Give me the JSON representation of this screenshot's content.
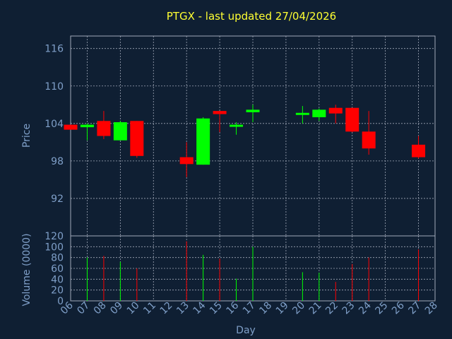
{
  "chart_data": {
    "type": "candlestick",
    "title": "PTGX - last updated 27/04/2026",
    "price_axis": {
      "label": "Price",
      "ylim": [
        86,
        118
      ],
      "ticks": [
        92,
        98,
        104,
        110,
        116
      ]
    },
    "volume_axis": {
      "label": "Volume (0000)",
      "ylim": [
        0,
        120
      ],
      "ticks": [
        0,
        20,
        40,
        60,
        80,
        100,
        120
      ]
    },
    "xlabel": "Day",
    "x_ticks": [
      "06",
      "07",
      "08",
      "09",
      "10",
      "11",
      "12",
      "13",
      "14",
      "15",
      "16",
      "17",
      "18",
      "19",
      "20",
      "21",
      "22",
      "23",
      "24",
      "25",
      "26",
      "27",
      "28"
    ],
    "grid": true,
    "colors": {
      "up": "#00ff00",
      "down": "#ff0000",
      "title": "#ffff33",
      "axis_text": "#7f9fc8",
      "background": "#0f1f33"
    },
    "candles": [
      {
        "day": "06",
        "open": 103.8,
        "high": 103.8,
        "low": 103.0,
        "close": 103.0,
        "volume": 0
      },
      {
        "day": "07",
        "open": 103.4,
        "high": 104.0,
        "low": 101.3,
        "close": 103.8,
        "volume": 80
      },
      {
        "day": "08",
        "open": 104.4,
        "high": 106.0,
        "low": 101.5,
        "close": 102.0,
        "volume": 83
      },
      {
        "day": "09",
        "open": 101.3,
        "high": 104.4,
        "low": 101.3,
        "close": 104.2,
        "volume": 72
      },
      {
        "day": "10",
        "open": 104.4,
        "high": 104.4,
        "low": 98.5,
        "close": 98.8,
        "volume": 60
      },
      {
        "day": "13",
        "open": 98.6,
        "high": 101.0,
        "low": 95.4,
        "close": 97.5,
        "volume": 110
      },
      {
        "day": "14",
        "open": 97.4,
        "high": 105.0,
        "low": 97.4,
        "close": 104.8,
        "volume": 85
      },
      {
        "day": "15",
        "open": 106.0,
        "high": 106.0,
        "low": 102.6,
        "close": 105.5,
        "volume": 78
      },
      {
        "day": "16",
        "open": 103.5,
        "high": 104.2,
        "low": 102.2,
        "close": 103.8,
        "volume": 41
      },
      {
        "day": "17",
        "open": 105.8,
        "high": 107.0,
        "low": 104.2,
        "close": 106.2,
        "volume": 100
      },
      {
        "day": "20",
        "open": 105.5,
        "high": 106.8,
        "low": 104.0,
        "close": 105.7,
        "volume": 53
      },
      {
        "day": "21",
        "open": 105.0,
        "high": 106.4,
        "low": 104.4,
        "close": 106.2,
        "volume": 52
      },
      {
        "day": "22",
        "open": 106.5,
        "high": 107.0,
        "low": 104.0,
        "close": 105.6,
        "volume": 35
      },
      {
        "day": "23",
        "open": 106.5,
        "high": 106.5,
        "low": 102.6,
        "close": 102.7,
        "volume": 68
      },
      {
        "day": "24",
        "open": 102.7,
        "high": 106.0,
        "low": 99.0,
        "close": 100.0,
        "volume": 80
      },
      {
        "day": "27",
        "open": 100.6,
        "high": 102.0,
        "low": 98.4,
        "close": 98.6,
        "volume": 95
      }
    ]
  }
}
